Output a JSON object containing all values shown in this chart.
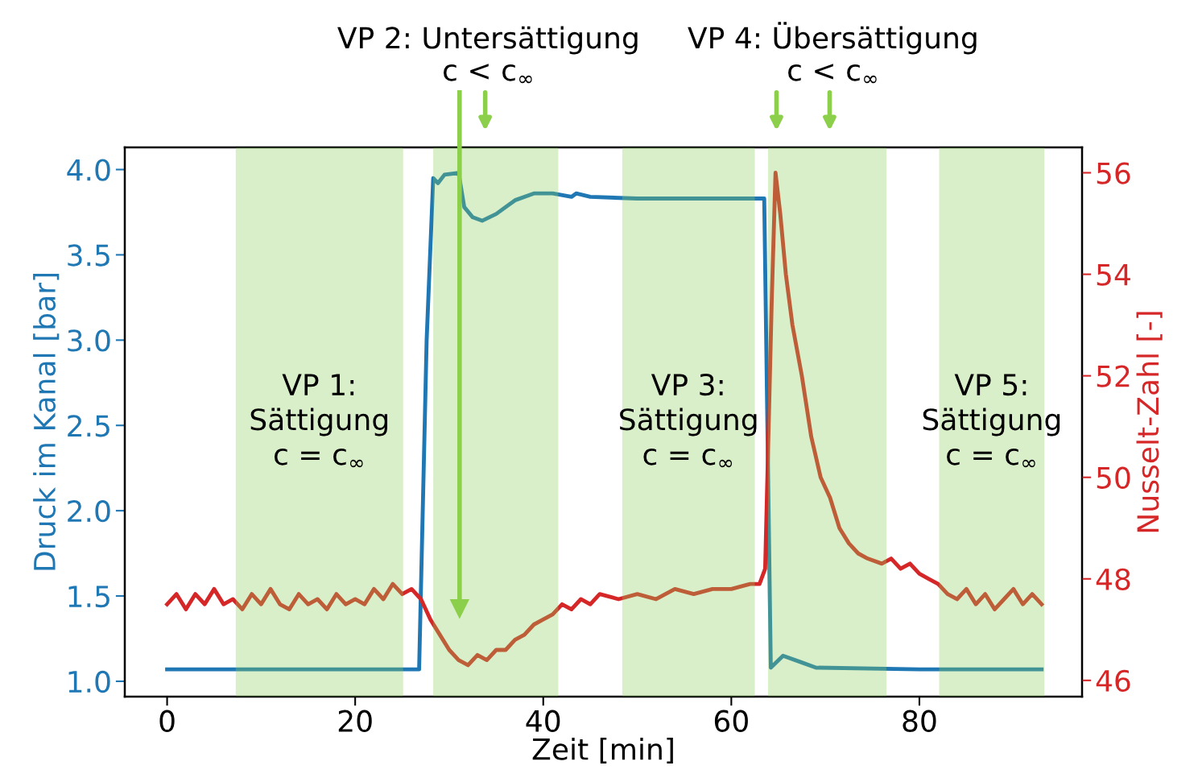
{
  "chart_data": {
    "type": "line",
    "xlabel": "Zeit [min]",
    "ylabel": "Druck im Kanal [bar]",
    "y2label": "Nusselt-Zahl [-]",
    "xlim": [
      -4.5,
      97.3
    ],
    "xticks": [
      0,
      20,
      40,
      60,
      80
    ],
    "ylim": [
      0.91,
      4.13
    ],
    "yticks": [
      {
        "value": 1.0,
        "label": "1.0"
      },
      {
        "value": 1.5,
        "label": "1.5"
      },
      {
        "value": 2.0,
        "label": "2.0"
      },
      {
        "value": 2.5,
        "label": "2.5"
      },
      {
        "value": 3.0,
        "label": "3.0"
      },
      {
        "value": 3.5,
        "label": "3.5"
      },
      {
        "value": 4.0,
        "label": "4.0"
      }
    ],
    "y2lim": [
      45.68,
      56.5
    ],
    "y2ticks": [
      46,
      48,
      50,
      52,
      54,
      56
    ],
    "grid": false,
    "legend": false,
    "series": [
      {
        "color": "#1f77b4",
        "x": [
          0,
          10,
          20,
          26.8,
          27.6,
          28.3,
          28.8,
          29.5,
          31,
          31.6,
          32.5,
          33.5,
          35,
          37,
          39,
          41,
          43,
          43.5,
          45,
          50,
          63.5,
          64.2,
          65.5,
          67.5,
          69,
          80,
          93
        ],
        "values": [
          1.07,
          1.07,
          1.07,
          1.07,
          3.0,
          3.95,
          3.92,
          3.97,
          3.98,
          3.78,
          3.72,
          3.7,
          3.74,
          3.82,
          3.86,
          3.86,
          3.84,
          3.86,
          3.84,
          3.83,
          3.83,
          1.08,
          1.15,
          1.11,
          1.08,
          1.07,
          1.07
        ]
      },
      {
        "color": "#d62728",
        "axis": "y2",
        "x": [
          0,
          1,
          2,
          3,
          4,
          5,
          6,
          7,
          8,
          9,
          10,
          11,
          12,
          13,
          14,
          15,
          16,
          17,
          18,
          19,
          20,
          21,
          22,
          23,
          24,
          25,
          26,
          27,
          28,
          29,
          30,
          31,
          32,
          33,
          34,
          35,
          36,
          37,
          38,
          39,
          40,
          41,
          42,
          43,
          44,
          45,
          46,
          48,
          50,
          52,
          54,
          56,
          58,
          60,
          62,
          63,
          63.6,
          64.3,
          64.7,
          65.2,
          65.8,
          66.5,
          67.5,
          68.5,
          69.5,
          70.5,
          71.5,
          72.5,
          73.5,
          74.5,
          76,
          77,
          78,
          79,
          80,
          81,
          82,
          83,
          84,
          85,
          86,
          87,
          88,
          89,
          90,
          91,
          92,
          93
        ],
        "values": [
          47.5,
          47.7,
          47.4,
          47.7,
          47.5,
          47.8,
          47.5,
          47.6,
          47.4,
          47.7,
          47.5,
          47.8,
          47.5,
          47.4,
          47.7,
          47.5,
          47.6,
          47.4,
          47.7,
          47.5,
          47.6,
          47.5,
          47.8,
          47.6,
          47.9,
          47.7,
          47.8,
          47.6,
          47.2,
          46.9,
          46.6,
          46.4,
          46.3,
          46.5,
          46.4,
          46.6,
          46.6,
          46.8,
          46.9,
          47.1,
          47.2,
          47.3,
          47.5,
          47.4,
          47.6,
          47.5,
          47.7,
          47.6,
          47.7,
          47.6,
          47.8,
          47.7,
          47.8,
          47.8,
          47.9,
          47.9,
          48.2,
          53.5,
          56.0,
          55.2,
          54.0,
          53.0,
          52.0,
          50.8,
          50.0,
          49.6,
          49.0,
          48.7,
          48.5,
          48.4,
          48.3,
          48.4,
          48.2,
          48.3,
          48.1,
          48.0,
          47.9,
          47.7,
          47.6,
          47.8,
          47.5,
          47.7,
          47.4,
          47.6,
          47.8,
          47.5,
          47.7,
          47.5
        ]
      }
    ],
    "ref_lines": [
      {
        "axis": "x",
        "value": 31.1,
        "color": "#8ccf4a"
      }
    ],
    "bands": [
      {
        "axis": "x",
        "from": 7.3,
        "to": 25.1,
        "color": "#8ccf5c",
        "label": "VP 1:\nSättigung\nc = c$_{∞}$"
      },
      {
        "axis": "x",
        "from": 28.3,
        "to": 41.6,
        "color": "#8ccf5c"
      },
      {
        "axis": "x",
        "from": 48.4,
        "to": 62.5,
        "color": "#8ccf5c",
        "label": "VP 3:\nSättigung\nc = c$_{∞}$"
      },
      {
        "axis": "x",
        "from": 63.9,
        "to": 76.5,
        "color": "#8ccf5c"
      },
      {
        "axis": "x",
        "from": 82.1,
        "to": 93.3,
        "color": "#8ccf5c",
        "label": "VP 5:\nSättigung\nc = c$_{∞}$"
      }
    ],
    "annotations": [
      "VP 2: Untersättigung\nc < c$_{∞}$",
      "VP 4: Übersättigung\nc < c$_{∞}$"
    ]
  }
}
